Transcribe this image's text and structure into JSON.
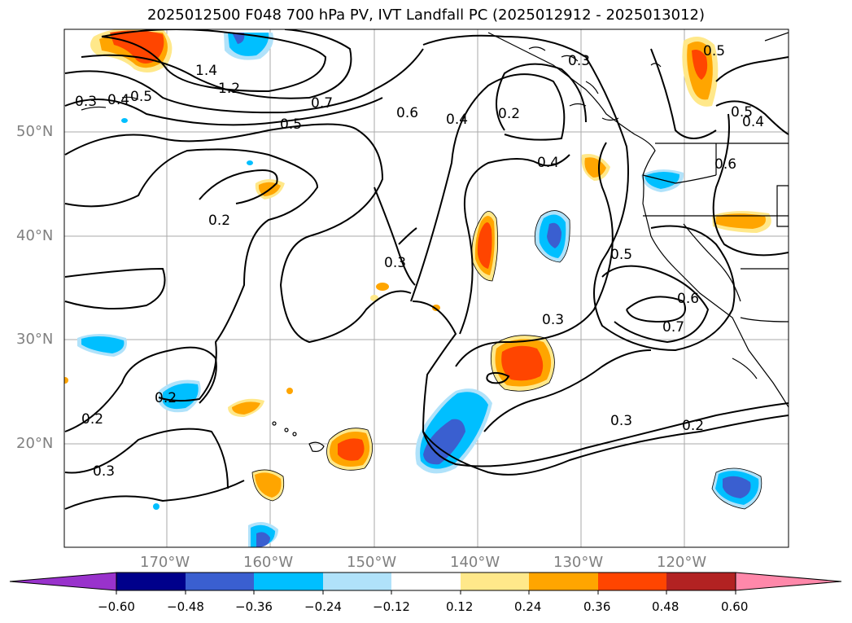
{
  "title": "2025012500 F048 700 hPa PV, IVT Landfall PC (2025012912 - 2025013012)",
  "map": {
    "lat_labels": [
      "50°N",
      "40°N",
      "30°N",
      "20°N"
    ],
    "lon_labels": [
      "170°W",
      "160°W",
      "150°W",
      "140°W",
      "130°W",
      "120°W"
    ],
    "contour_labels": [
      "1.4",
      "1.2",
      "0.7",
      "0.5",
      "0.6",
      "0.4",
      "0.2",
      "0.3",
      "0.4",
      "0.2",
      "0.3",
      "0.5",
      "0.6",
      "0.7",
      "0.3",
      "0.3",
      "0.2",
      "0.2",
      "0.3",
      "0.2",
      "0.5",
      "0.5",
      "0.4",
      "0.6",
      "0.3",
      "0.4",
      "0.5"
    ],
    "fill_colors": {
      "neg_lightblue": "#b0e2fa",
      "neg_cyan": "#00bfff",
      "neg_blue": "#3a5fd0",
      "pos_yellow": "#ffe88a",
      "pos_orange": "#ffa500",
      "pos_redorange": "#ff4500"
    }
  },
  "colorbar": {
    "ticks": [
      "−0.60",
      "−0.48",
      "−0.36",
      "−0.24",
      "−0.12",
      "0.12",
      "0.24",
      "0.36",
      "0.48",
      "0.60"
    ],
    "colors": [
      "#9932cc",
      "#00008b",
      "#3a5fd0",
      "#00bfff",
      "#b0e2fa",
      "#ffffff",
      "#ffe88a",
      "#ffa500",
      "#ff4500",
      "#b22222",
      "#ff88aa",
      "#ff88aa"
    ]
  }
}
